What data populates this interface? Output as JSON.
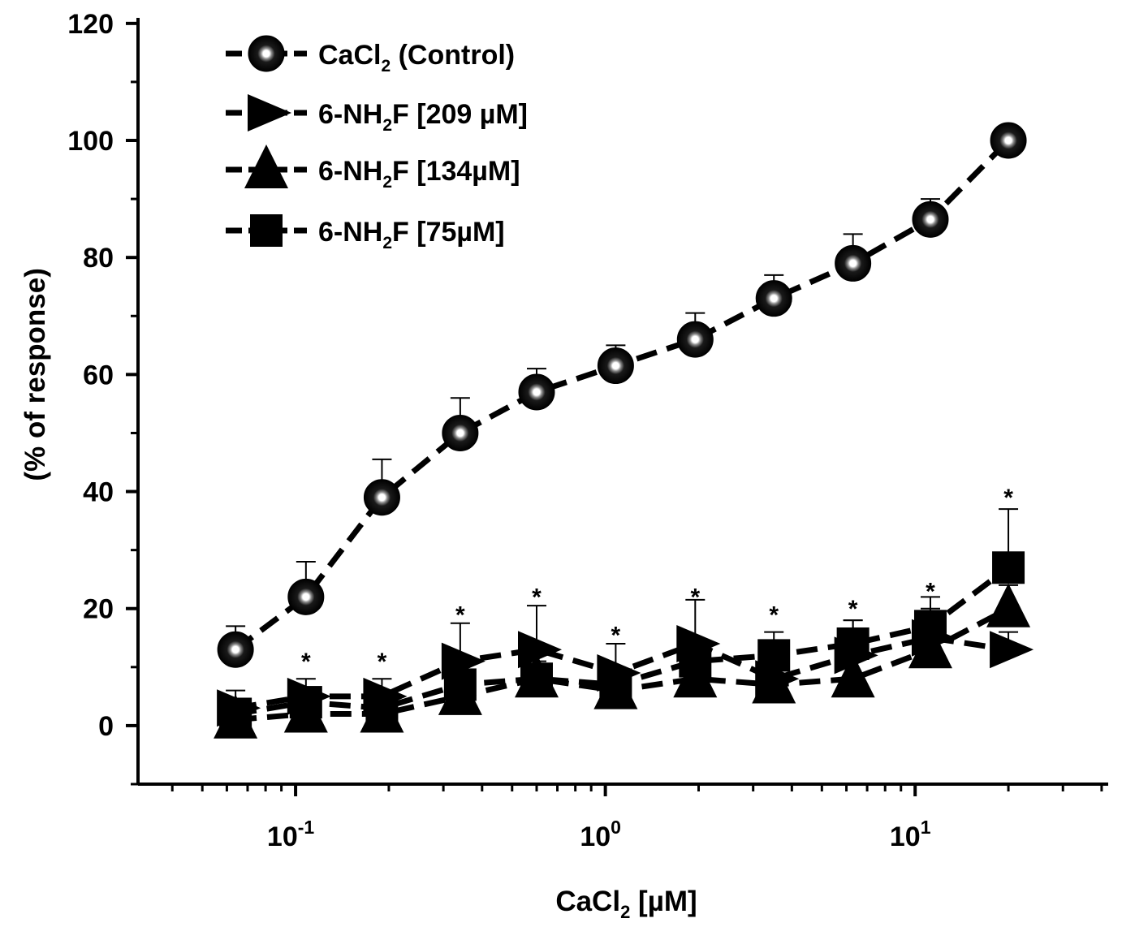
{
  "chart_data": {
    "type": "line",
    "xscale": "log",
    "title": "",
    "xlabel": {
      "main": "CaCl",
      "sub": "2",
      "rest": " [µM]"
    },
    "ylabel": "(% of response)",
    "xlim": [
      0.031,
      42
    ],
    "ylim": [
      -10,
      124
    ],
    "yticks": [
      0,
      20,
      40,
      60,
      80,
      100,
      120
    ],
    "xticks": [
      {
        "value": 0.1,
        "base": "10",
        "exp": "-1"
      },
      {
        "value": 1,
        "base": "10",
        "exp": "0"
      },
      {
        "value": 10,
        "base": "10",
        "exp": "1"
      }
    ],
    "legend_position": "top-left",
    "series": [
      {
        "id": "control",
        "marker": "sphere",
        "legend": {
          "main": "CaCl",
          "sub": "2",
          "rest": " (Control)"
        },
        "x": [
          0.064,
          0.108,
          0.19,
          0.34,
          0.6,
          1.08,
          1.95,
          3.5,
          6.3,
          11.2,
          20
        ],
        "values": [
          13,
          22,
          39,
          50,
          57,
          61.5,
          66,
          73,
          79,
          86.5,
          100
        ],
        "errors": [
          4,
          6,
          6.5,
          6,
          4,
          3.5,
          4.5,
          4,
          5,
          3.5,
          0
        ]
      },
      {
        "id": "209",
        "marker": "triangle-right",
        "legend": {
          "main": " 6-NH",
          "sub": "2",
          "rest": "F [209 µM]"
        },
        "x": [
          0.064,
          0.108,
          0.19,
          0.34,
          0.6,
          1.08,
          1.95,
          3.5,
          6.3,
          11.2,
          20
        ],
        "values": [
          3,
          5,
          5,
          11,
          13,
          9,
          14,
          8,
          12,
          15,
          13
        ],
        "errors": [
          3,
          3,
          3,
          6.5,
          7.5,
          5,
          7.5,
          5,
          6,
          5,
          3
        ]
      },
      {
        "id": "134",
        "marker": "triangle-up",
        "legend": {
          "main": "6-NH",
          "sub": "2",
          "rest": "F [134µM]"
        },
        "x": [
          0.064,
          0.108,
          0.19,
          0.34,
          0.6,
          1.08,
          1.95,
          3.5,
          6.3,
          11.2,
          20
        ],
        "values": [
          1,
          2,
          2,
          5,
          8,
          6,
          8,
          7,
          8,
          13,
          20
        ],
        "errors": [
          3,
          3,
          3,
          4,
          4,
          3.5,
          4,
          4,
          4,
          6,
          4
        ]
      },
      {
        "id": "75",
        "marker": "square",
        "legend": {
          "main": "6-NH",
          "sub": "2",
          "rest": "F [75µM]"
        },
        "x": [
          0.064,
          0.108,
          0.19,
          0.34,
          0.6,
          1.08,
          1.95,
          3.5,
          6.3,
          11.2,
          20
        ],
        "values": [
          2,
          4,
          3,
          7,
          8,
          7,
          11,
          12,
          14,
          17,
          27
        ],
        "errors": [
          2,
          2.5,
          2.5,
          3,
          3,
          3,
          3,
          4,
          4,
          5,
          10
        ]
      }
    ],
    "significance": {
      "label": "*",
      "x": [
        0.108,
        0.19,
        0.34,
        0.6,
        1.08,
        1.95,
        3.5,
        6.3,
        11.2,
        20
      ],
      "y": [
        11.5,
        11.5,
        19.5,
        22.5,
        16,
        22.5,
        19.5,
        20.5,
        23.5,
        39.5
      ]
    }
  }
}
